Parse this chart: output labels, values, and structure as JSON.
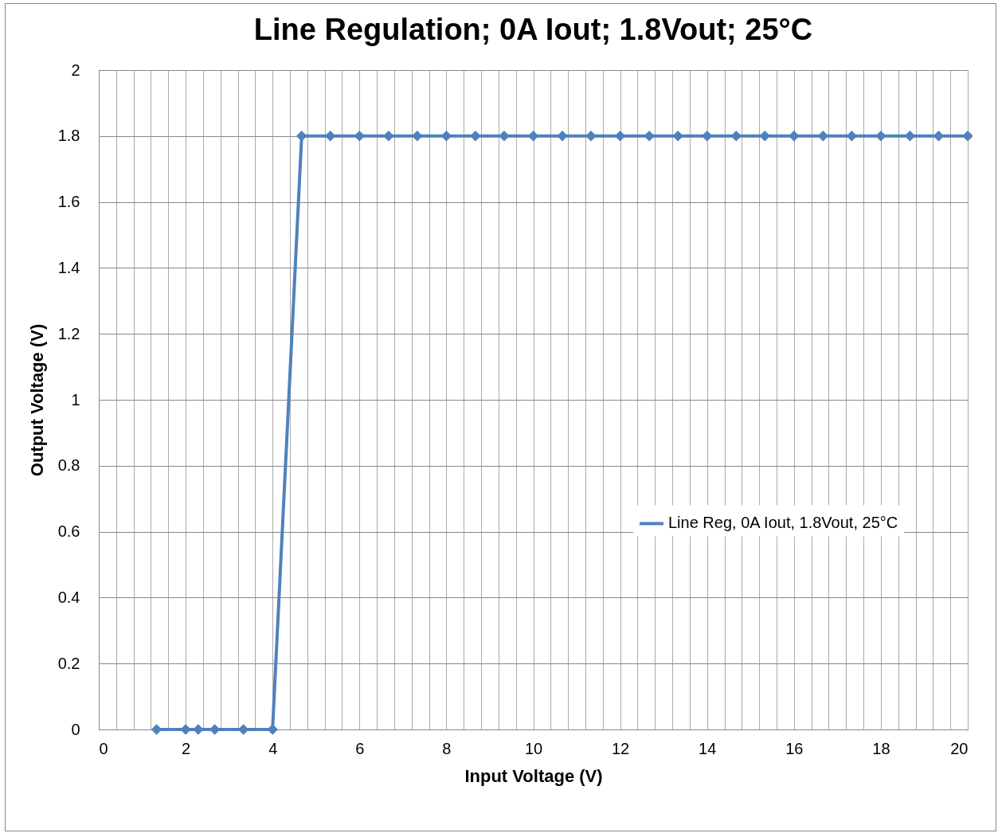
{
  "chart_data": {
    "type": "line",
    "title": "Line Regulation; 0A Iout; 1.8Vout; 25°C",
    "xlabel": "Input Voltage (V)",
    "ylabel": "Output Voltage (V)",
    "series": [
      {
        "name": "Line Reg, 0A Iout, 1.8Vout, 25°C",
        "color": "#4f81bd",
        "x": [
          1.33,
          2,
          2.29,
          2.67,
          3.33,
          4,
          4.67,
          5.33,
          6,
          6.67,
          7.33,
          8,
          8.67,
          9.33,
          10,
          10.67,
          11.33,
          12,
          12.67,
          13.33,
          14,
          14.67,
          15.33,
          16,
          16.67,
          17.33,
          18,
          18.67,
          19.33,
          20
        ],
        "values": [
          0,
          0,
          0,
          0,
          0,
          0,
          1.8,
          1.8,
          1.8,
          1.8,
          1.8,
          1.8,
          1.8,
          1.8,
          1.8,
          1.8,
          1.8,
          1.8,
          1.8,
          1.8,
          1.8,
          1.8,
          1.8,
          1.8,
          1.8,
          1.8,
          1.8,
          1.8,
          1.8,
          1.8
        ]
      }
    ],
    "xlim": [
      0,
      20
    ],
    "xticks": [
      0,
      {
        "value": 0.4,
        "label": null
      },
      {
        "value": 0.8,
        "label": null
      },
      {
        "value": 1.2,
        "label": null
      },
      {
        "value": 1.6,
        "label": null
      },
      2,
      {
        "value": 2.4,
        "label": null
      },
      {
        "value": 2.8,
        "label": null
      },
      {
        "value": 3.2,
        "label": null
      },
      {
        "value": 3.6,
        "label": null
      },
      4,
      {
        "value": 4.4,
        "label": null
      },
      {
        "value": 4.8,
        "label": null
      },
      {
        "value": 5.2,
        "label": null
      },
      {
        "value": 5.6,
        "label": null
      },
      6,
      {
        "value": 6.4,
        "label": null
      },
      {
        "value": 6.8,
        "label": null
      },
      {
        "value": 7.2,
        "label": null
      },
      {
        "value": 7.6,
        "label": null
      },
      8,
      {
        "value": 8.4,
        "label": null
      },
      {
        "value": 8.8,
        "label": null
      },
      {
        "value": 9.2,
        "label": null
      },
      {
        "value": 9.6,
        "label": null
      },
      10,
      {
        "value": 10.4,
        "label": null
      },
      {
        "value": 10.8,
        "label": null
      },
      {
        "value": 11.2,
        "label": null
      },
      {
        "value": 11.6,
        "label": null
      },
      12,
      {
        "value": 12.4,
        "label": null
      },
      {
        "value": 12.8,
        "label": null
      },
      {
        "value": 13.2,
        "label": null
      },
      {
        "value": 13.6,
        "label": null
      },
      14,
      {
        "value": 14.4,
        "label": null
      },
      {
        "value": 14.8,
        "label": null
      },
      {
        "value": 15.2,
        "label": null
      },
      {
        "value": 15.6,
        "label": null
      },
      16,
      {
        "value": 16.4,
        "label": null
      },
      {
        "value": 16.8,
        "label": null
      },
      {
        "value": 17.2,
        "label": null
      },
      {
        "value": 17.6,
        "label": null
      },
      18,
      {
        "value": 18.4,
        "label": null
      },
      {
        "value": 18.8,
        "label": null
      },
      {
        "value": 19.2,
        "label": null
      },
      {
        "value": 19.6,
        "label": null
      },
      20
    ],
    "ylim": [
      0,
      2
    ],
    "yticks": [
      0,
      0.2,
      0.4,
      0.6,
      0.8,
      1,
      1.2,
      1.4,
      1.6,
      1.8,
      2
    ],
    "grid": true,
    "legend": "right",
    "marker": "diamond",
    "line_style": "solid"
  }
}
